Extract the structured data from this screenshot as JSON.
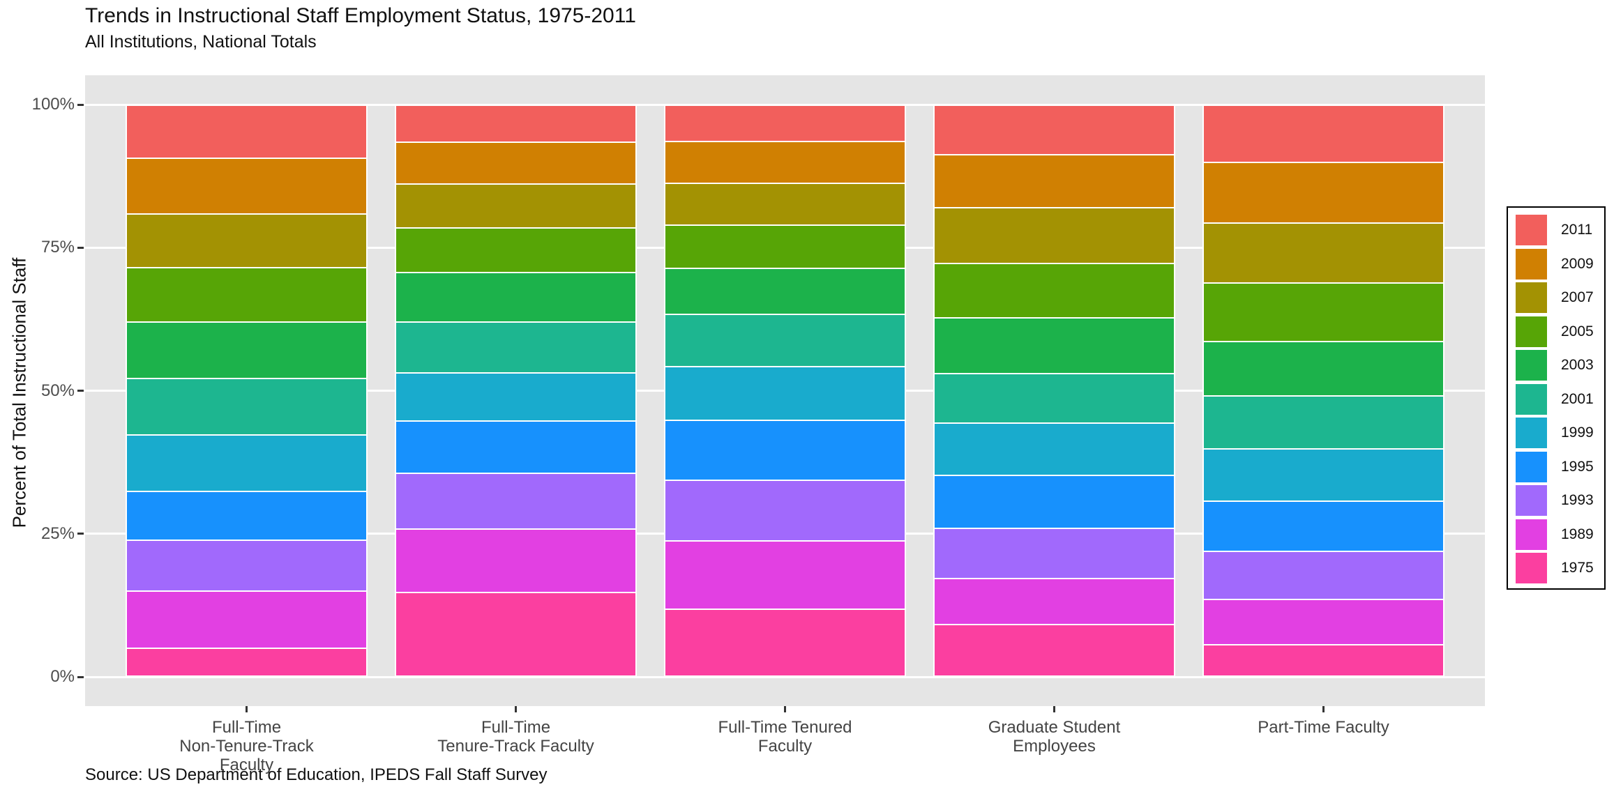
{
  "header": {
    "title": "Trends in Instructional Staff Employment Status, 1975-2011",
    "subtitle": "All Institutions, National Totals"
  },
  "y_axis": {
    "label": "Percent of Total Instructional Staff",
    "ticks": [
      {
        "label": "0%",
        "value": 0
      },
      {
        "label": "25%",
        "value": 25
      },
      {
        "label": "50%",
        "value": 50
      },
      {
        "label": "75%",
        "value": 75
      },
      {
        "label": "100%",
        "value": 100
      }
    ]
  },
  "x_axis": {
    "categories": [
      {
        "lines": [
          "Full-Time",
          "Non-Tenure-Track",
          "Faculty"
        ]
      },
      {
        "lines": [
          "Full-Time",
          "Tenure-Track Faculty"
        ]
      },
      {
        "lines": [
          "Full-Time Tenured",
          "Faculty"
        ]
      },
      {
        "lines": [
          "Graduate Student",
          "Employees"
        ]
      },
      {
        "lines": [
          "Part-Time Faculty"
        ]
      }
    ]
  },
  "source": "Source: US Department of Education, IPEDS Fall Staff Survey",
  "chart_data": {
    "type": "bar",
    "stacked": true,
    "normalized_percent_per_category": true,
    "title": "Trends in Instructional Staff Employment Status, 1975-2011",
    "subtitle": "All Institutions, National Totals",
    "xlabel": "",
    "ylabel": "Percent of Total Instructional Staff",
    "ylim": [
      0,
      100
    ],
    "grid": true,
    "legend_position": "right",
    "panel_background": "#E5E5E5",
    "gridline_color": "#FFFFFF",
    "categories": [
      "Full-Time Non-Tenure-Track Faculty",
      "Full-Time Tenure-Track Faculty",
      "Full-Time Tenured Faculty",
      "Graduate Student Employees",
      "Part-Time Faculty"
    ],
    "series_note": "series listed in legend order (top of stack first); values are percent of each category total, stacked bottom-up from 1975",
    "series": [
      {
        "name": "2011",
        "color": "#F25F5C",
        "values": [
          9.3,
          6.5,
          6.3,
          8.6,
          10.0
        ]
      },
      {
        "name": "2009",
        "color": "#D08002",
        "values": [
          9.7,
          7.3,
          7.4,
          9.3,
          10.6
        ]
      },
      {
        "name": "2007",
        "color": "#A39203",
        "values": [
          9.4,
          7.6,
          7.2,
          9.7,
          10.5
        ]
      },
      {
        "name": "2005",
        "color": "#57A506",
        "values": [
          9.5,
          7.8,
          7.6,
          9.5,
          10.2
        ]
      },
      {
        "name": "2003",
        "color": "#1CB24B",
        "values": [
          9.8,
          8.7,
          8.1,
          9.8,
          9.5
        ]
      },
      {
        "name": "2001",
        "color": "#1DB690",
        "values": [
          9.9,
          8.9,
          9.1,
          8.7,
          9.3
        ]
      },
      {
        "name": "1999",
        "color": "#19ABCD",
        "values": [
          9.9,
          8.4,
          9.3,
          9.1,
          9.1
        ]
      },
      {
        "name": "1995",
        "color": "#1791FD",
        "values": [
          8.5,
          9.1,
          10.5,
          9.2,
          8.8
        ]
      },
      {
        "name": "1993",
        "color": "#A169FC",
        "values": [
          8.9,
          9.8,
          10.6,
          8.8,
          8.4
        ]
      },
      {
        "name": "1989",
        "color": "#E240E2",
        "values": [
          10.0,
          11.0,
          12.0,
          8.0,
          7.9
        ]
      },
      {
        "name": "1975",
        "color": "#FB3FA0",
        "values": [
          5.1,
          14.9,
          11.9,
          9.3,
          5.7
        ]
      }
    ]
  }
}
